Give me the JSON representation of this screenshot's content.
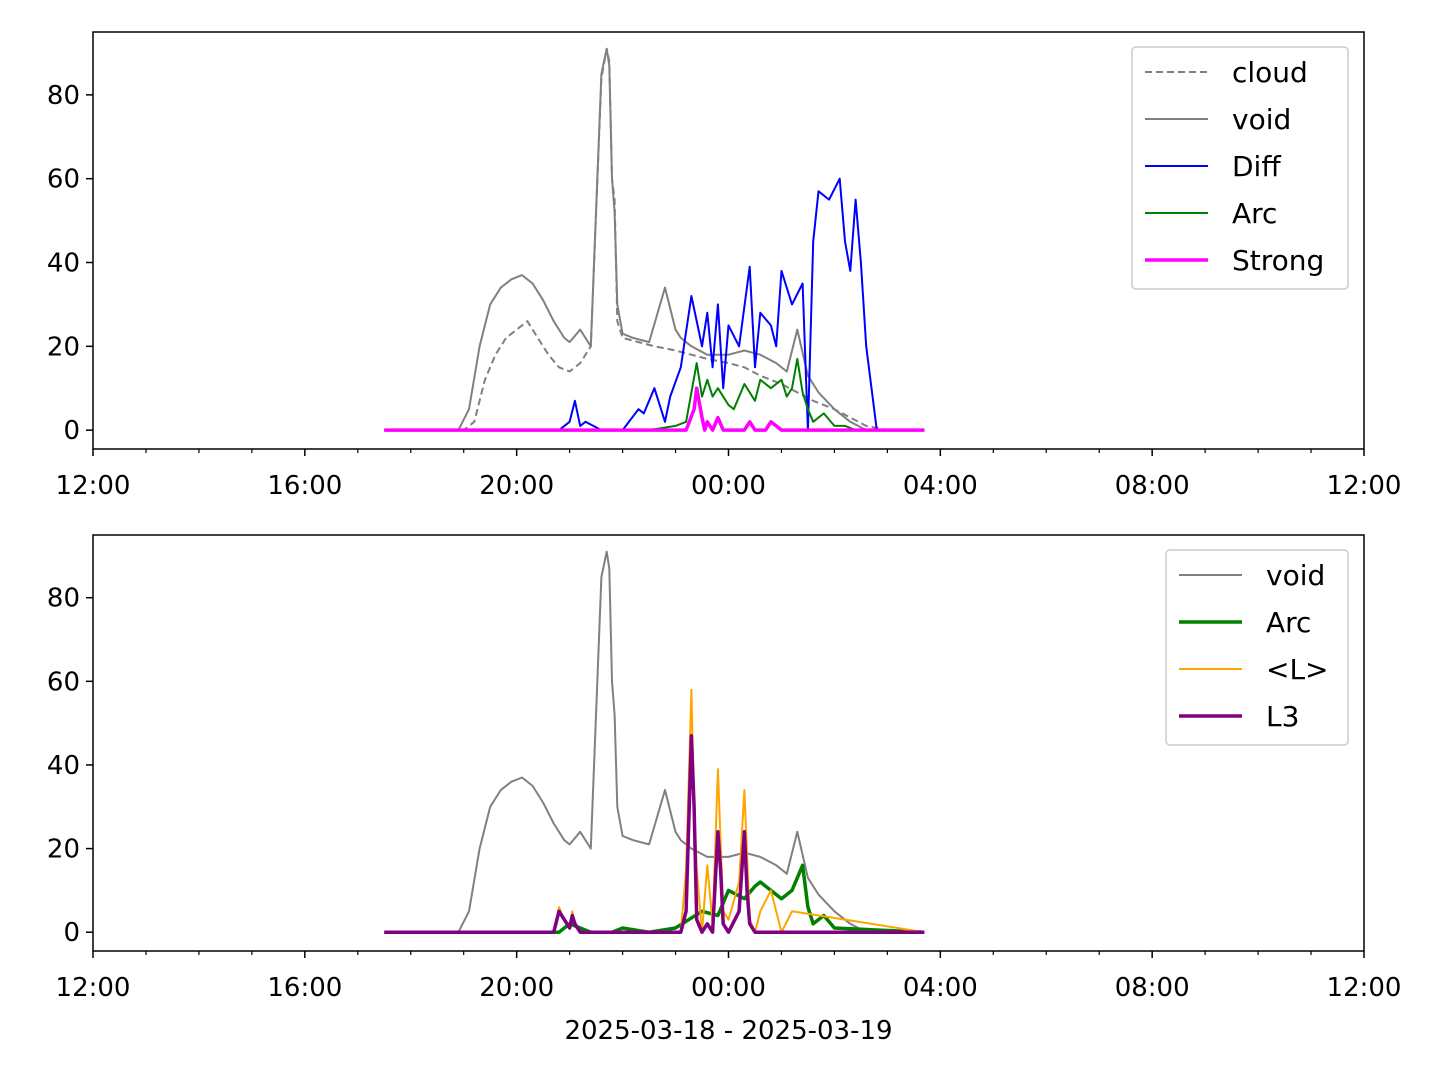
{
  "chart_data": [
    {
      "type": "line",
      "x_axis": {
        "ticks": [
          "12:00",
          "16:00",
          "20:00",
          "00:00",
          "04:00",
          "08:00",
          "12:00"
        ],
        "tick_hours": [
          12,
          16,
          20,
          24,
          28,
          32,
          36
        ],
        "range_hours": [
          12,
          36
        ],
        "minor_tick_hours": [
          13,
          14,
          15,
          17,
          18,
          19,
          21,
          22,
          23,
          25,
          26,
          27,
          29,
          30,
          31,
          33,
          34,
          35
        ]
      },
      "y_axis": {
        "ticks": [
          "0",
          "20",
          "40",
          "60",
          "80"
        ],
        "tick_values": [
          0,
          20,
          40,
          60,
          80
        ],
        "range": [
          -4.5,
          95
        ]
      },
      "legend": {
        "location": "top-right"
      },
      "series": [
        {
          "name": "cloud",
          "color": "#808080",
          "style": "dashed",
          "width": 1,
          "x": [
            17.5,
            18.0,
            18.5,
            19.0,
            19.2,
            19.4,
            19.6,
            19.8,
            20.0,
            20.2,
            20.4,
            20.6,
            20.8,
            21.0,
            21.2,
            21.4,
            21.6,
            21.7,
            21.75,
            21.8,
            21.85,
            21.9,
            22.0,
            22.3,
            22.6,
            23.0,
            23.3,
            23.6,
            24.0,
            24.3,
            24.6,
            25.0,
            25.3,
            25.6,
            26.0,
            26.3,
            26.6,
            27.0,
            27.7
          ],
          "y": [
            0,
            0,
            0,
            0,
            2,
            12,
            18,
            22,
            24,
            26,
            22,
            18,
            15,
            14,
            16,
            20,
            84,
            91,
            88,
            60,
            55,
            26,
            22,
            21,
            20,
            19,
            18,
            17,
            16,
            15,
            13,
            11,
            9,
            7,
            5,
            3,
            1,
            0,
            0
          ]
        },
        {
          "name": "void",
          "color": "#808080",
          "style": "solid",
          "width": 1,
          "x": [
            17.5,
            18.0,
            18.5,
            18.9,
            19.1,
            19.3,
            19.5,
            19.7,
            19.9,
            20.1,
            20.3,
            20.5,
            20.7,
            20.9,
            21.0,
            21.2,
            21.4,
            21.6,
            21.7,
            21.75,
            21.8,
            21.85,
            21.9,
            22.0,
            22.2,
            22.5,
            22.8,
            23.0,
            23.1,
            23.3,
            23.6,
            24.0,
            24.3,
            24.6,
            24.9,
            25.1,
            25.3,
            25.5,
            25.7,
            26.0,
            26.3,
            26.6,
            27.0,
            27.7
          ],
          "y": [
            0,
            0,
            0,
            0,
            5,
            20,
            30,
            34,
            36,
            37,
            35,
            31,
            26,
            22,
            21,
            24,
            20,
            85,
            91,
            87,
            60,
            52,
            30,
            23,
            22,
            21,
            34,
            24,
            22,
            20,
            18,
            18,
            19,
            18,
            16,
            14,
            24,
            13,
            9,
            5,
            2,
            0,
            0,
            0
          ]
        },
        {
          "name": "Diff",
          "color": "#0000ff",
          "style": "solid",
          "width": 1,
          "x": [
            17.5,
            20.8,
            21.0,
            21.1,
            21.2,
            21.3,
            21.6,
            22.0,
            22.3,
            22.4,
            22.6,
            22.8,
            22.9,
            23.1,
            23.3,
            23.5,
            23.6,
            23.7,
            23.8,
            23.9,
            24.0,
            24.2,
            24.4,
            24.5,
            24.6,
            24.8,
            24.9,
            25.0,
            25.2,
            25.4,
            25.5,
            25.6,
            25.7,
            25.9,
            26.1,
            26.2,
            26.3,
            26.4,
            26.5,
            26.6,
            26.8,
            27.7
          ],
          "y": [
            0,
            0,
            2,
            7,
            1,
            2,
            0,
            0,
            5,
            4,
            10,
            2,
            8,
            15,
            32,
            20,
            28,
            15,
            30,
            10,
            25,
            20,
            39,
            15,
            28,
            25,
            20,
            38,
            30,
            35,
            0,
            45,
            57,
            55,
            60,
            45,
            38,
            55,
            40,
            20,
            0,
            0
          ]
        },
        {
          "name": "Arc",
          "color": "#008000",
          "style": "solid",
          "width": 1,
          "x": [
            17.5,
            22.5,
            23.0,
            23.2,
            23.4,
            23.5,
            23.6,
            23.7,
            23.8,
            24.0,
            24.1,
            24.3,
            24.5,
            24.6,
            24.8,
            25.0,
            25.1,
            25.2,
            25.3,
            25.4,
            25.5,
            25.6,
            25.8,
            26.0,
            26.2,
            26.4,
            27.7
          ],
          "y": [
            0,
            0,
            1,
            2,
            16,
            8,
            12,
            8,
            10,
            6,
            5,
            11,
            7,
            12,
            10,
            12,
            8,
            10,
            17,
            9,
            5,
            2,
            4,
            1,
            1,
            0,
            0
          ]
        },
        {
          "name": "Strong",
          "color": "#ff00ff",
          "style": "solid",
          "width": 2,
          "x": [
            17.5,
            23.2,
            23.35,
            23.4,
            23.5,
            23.55,
            23.6,
            23.7,
            23.8,
            23.9,
            24.1,
            24.3,
            24.4,
            24.5,
            24.7,
            24.8,
            24.9,
            25.0,
            27.7
          ],
          "y": [
            0,
            0,
            5,
            10,
            3,
            0,
            2,
            0,
            3,
            0,
            0,
            0,
            2,
            0,
            0,
            2,
            1,
            0,
            0
          ]
        }
      ]
    },
    {
      "type": "line",
      "xlabel": "2025-03-18 - 2025-03-19",
      "x_axis": {
        "ticks": [
          "12:00",
          "16:00",
          "20:00",
          "00:00",
          "04:00",
          "08:00",
          "12:00"
        ],
        "tick_hours": [
          12,
          16,
          20,
          24,
          28,
          32,
          36
        ],
        "range_hours": [
          12,
          36
        ],
        "minor_tick_hours": [
          13,
          14,
          15,
          17,
          18,
          19,
          21,
          22,
          23,
          25,
          26,
          27,
          29,
          30,
          31,
          33,
          34,
          35
        ]
      },
      "y_axis": {
        "ticks": [
          "0",
          "20",
          "40",
          "60",
          "80"
        ],
        "tick_values": [
          0,
          20,
          40,
          60,
          80
        ],
        "range": [
          -4.5,
          95
        ]
      },
      "legend": {
        "location": "top-right"
      },
      "series": [
        {
          "name": "void",
          "color": "#808080",
          "style": "solid",
          "width": 1,
          "x": [
            17.5,
            18.0,
            18.5,
            18.9,
            19.1,
            19.3,
            19.5,
            19.7,
            19.9,
            20.1,
            20.3,
            20.5,
            20.7,
            20.9,
            21.0,
            21.2,
            21.4,
            21.6,
            21.7,
            21.75,
            21.8,
            21.85,
            21.9,
            22.0,
            22.2,
            22.5,
            22.8,
            23.0,
            23.1,
            23.3,
            23.6,
            24.0,
            24.3,
            24.6,
            24.9,
            25.1,
            25.3,
            25.5,
            25.7,
            26.0,
            26.3,
            26.6,
            27.0,
            27.7
          ],
          "y": [
            0,
            0,
            0,
            0,
            5,
            20,
            30,
            34,
            36,
            37,
            35,
            31,
            26,
            22,
            21,
            24,
            20,
            85,
            91,
            87,
            60,
            52,
            30,
            23,
            22,
            21,
            34,
            24,
            22,
            20,
            18,
            18,
            19,
            18,
            16,
            14,
            24,
            13,
            9,
            5,
            2,
            0,
            0,
            0
          ]
        },
        {
          "name": "Arc",
          "color": "#008000",
          "style": "solid",
          "width": 2,
          "x": [
            17.5,
            20.8,
            21.0,
            21.2,
            21.4,
            21.8,
            22.0,
            22.5,
            23.0,
            23.5,
            23.8,
            24.0,
            24.3,
            24.5,
            24.6,
            24.8,
            25.0,
            25.2,
            25.4,
            25.5,
            25.6,
            25.8,
            26.0,
            27.7
          ],
          "y": [
            0,
            0,
            2,
            1,
            0,
            0,
            1,
            0,
            1,
            5,
            4,
            10,
            8,
            11,
            12,
            10,
            8,
            10,
            16,
            6,
            2,
            4,
            1,
            0
          ]
        },
        {
          "name": "<L>",
          "color": "#ffa500",
          "style": "solid",
          "width": 1,
          "x": [
            17.5,
            20.7,
            20.8,
            20.9,
            21.0,
            21.05,
            21.1,
            21.2,
            23.1,
            23.2,
            23.3,
            23.35,
            23.4,
            23.5,
            23.6,
            23.7,
            23.8,
            23.9,
            24.0,
            24.2,
            24.3,
            24.4,
            24.5,
            24.6,
            24.8,
            25.0,
            25.2,
            27.7
          ],
          "y": [
            0,
            0,
            6,
            3,
            1,
            5,
            2,
            0,
            0,
            15,
            58,
            30,
            15,
            0,
            16,
            2,
            39,
            5,
            3,
            12,
            34,
            3,
            0,
            5,
            10,
            0,
            5,
            0
          ]
        },
        {
          "name": "L3",
          "color": "#800080",
          "style": "solid",
          "width": 2,
          "x": [
            17.5,
            20.7,
            20.8,
            20.9,
            21.0,
            21.05,
            21.1,
            21.2,
            23.1,
            23.2,
            23.3,
            23.35,
            23.4,
            23.5,
            23.6,
            23.7,
            23.8,
            23.85,
            23.9,
            24.0,
            24.2,
            24.3,
            24.35,
            24.4,
            24.5,
            27.7
          ],
          "y": [
            0,
            0,
            5,
            3,
            1,
            4,
            2,
            0,
            0,
            5,
            47,
            30,
            3,
            0,
            2,
            0,
            24,
            15,
            2,
            0,
            5,
            24,
            10,
            2,
            0,
            0
          ]
        }
      ]
    }
  ]
}
